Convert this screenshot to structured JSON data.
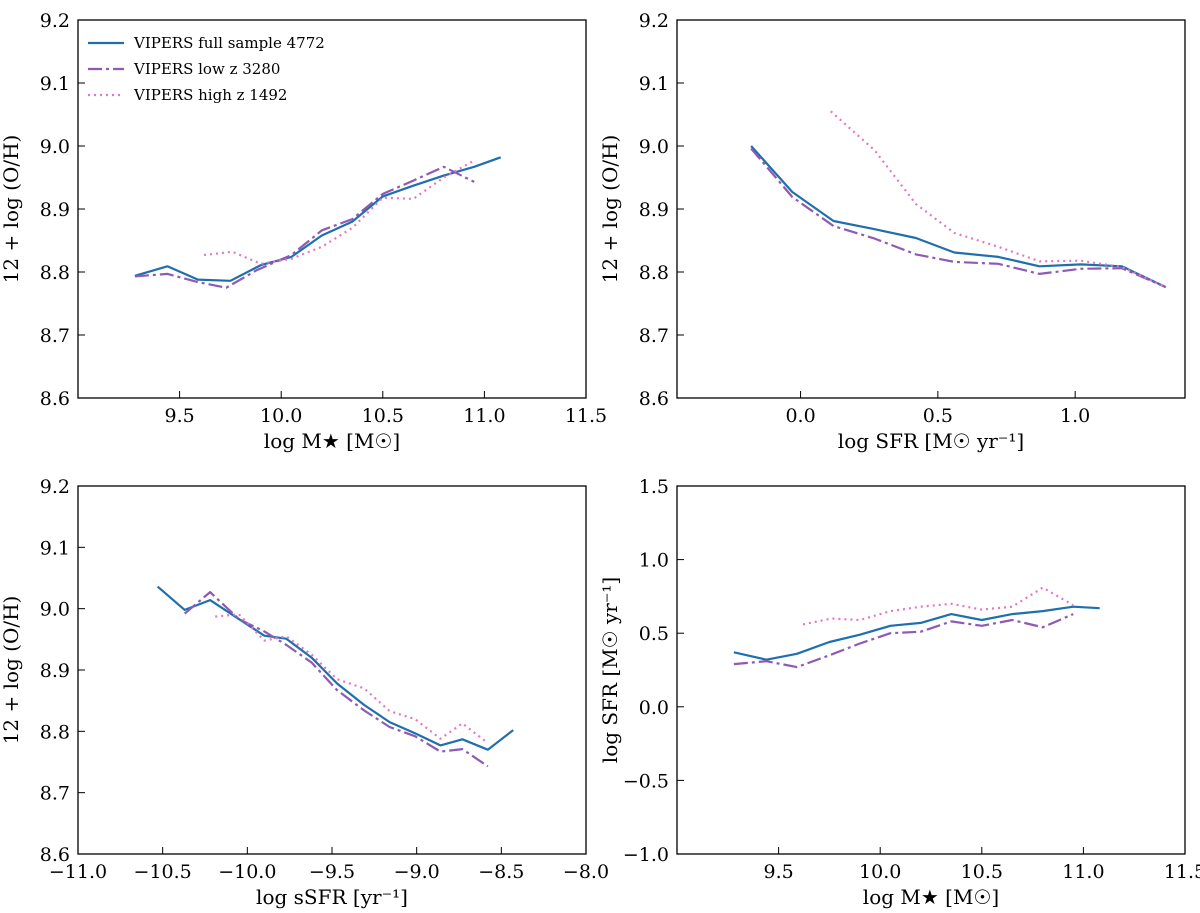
{
  "chart_data": [
    {
      "type": "line",
      "xlabel": "log M★ [M☉]",
      "ylabel": "12 + log (O/H)",
      "xlim": [
        9.0,
        11.5
      ],
      "ylim": [
        8.6,
        9.2
      ],
      "xticks": [
        9.5,
        10.0,
        10.5,
        11.0,
        11.5
      ],
      "yticks": [
        8.6,
        8.7,
        8.8,
        8.9,
        9.0,
        9.1,
        9.2
      ],
      "xtick_labels": [
        "9.5",
        "10.0",
        "10.5",
        "11.0",
        "11.5"
      ],
      "ytick_labels": [
        "8.6",
        "8.7",
        "8.8",
        "8.9",
        "9.0",
        "9.1",
        "9.2"
      ],
      "legend": {
        "position": "upper-left",
        "entries": [
          "VIPERS full sample 4772",
          "VIPERS low z 3280",
          "VIPERS high z 1492"
        ]
      },
      "series": [
        {
          "name": "VIPERS full sample 4772",
          "x": [
            9.28,
            9.44,
            9.59,
            9.75,
            9.9,
            10.05,
            10.2,
            10.35,
            10.5,
            10.65,
            10.8,
            10.95,
            11.08
          ],
          "y": [
            8.794,
            8.809,
            8.788,
            8.786,
            8.811,
            8.824,
            8.858,
            8.88,
            8.92,
            8.937,
            8.953,
            8.967,
            8.982
          ]
        },
        {
          "name": "VIPERS low z 3280",
          "x": [
            9.28,
            9.44,
            9.59,
            9.73,
            9.88,
            10.05,
            10.2,
            10.35,
            10.5,
            10.65,
            10.8,
            10.95
          ],
          "y": [
            8.793,
            8.797,
            8.784,
            8.775,
            8.803,
            8.827,
            8.866,
            8.884,
            8.924,
            8.945,
            8.967,
            8.943
          ]
        },
        {
          "name": "VIPERS high z 1492",
          "x": [
            9.62,
            9.76,
            9.9,
            10.05,
            10.2,
            10.35,
            10.5,
            10.65,
            10.8,
            10.95
          ],
          "y": [
            8.827,
            8.832,
            8.813,
            8.821,
            8.84,
            8.87,
            8.918,
            8.916,
            8.95,
            8.977
          ]
        }
      ]
    },
    {
      "type": "line",
      "xlabel": "log SFR [M☉ yr⁻¹]",
      "ylabel": "12 + log (O/H)",
      "xlim": [
        -0.45,
        1.4
      ],
      "ylim": [
        8.6,
        9.2
      ],
      "xticks": [
        0.0,
        0.5,
        1.0
      ],
      "yticks": [
        8.6,
        8.7,
        8.8,
        8.9,
        9.0,
        9.1,
        9.2
      ],
      "xtick_labels": [
        "0.0",
        "0.5",
        "1.0"
      ],
      "ytick_labels": [
        "8.6",
        "8.7",
        "8.8",
        "8.9",
        "9.0",
        "9.1",
        "9.2"
      ],
      "series": [
        {
          "name": "VIPERS full sample 4772",
          "x": [
            -0.18,
            -0.03,
            0.12,
            0.27,
            0.42,
            0.56,
            0.72,
            0.87,
            1.02,
            1.17,
            1.33
          ],
          "y": [
            9.0,
            8.927,
            8.881,
            8.868,
            8.854,
            8.831,
            8.824,
            8.809,
            8.812,
            8.809,
            8.776
          ]
        },
        {
          "name": "VIPERS low z 3280",
          "x": [
            -0.18,
            -0.03,
            0.12,
            0.27,
            0.42,
            0.56,
            0.72,
            0.87,
            1.02,
            1.17,
            1.33
          ],
          "y": [
            8.996,
            8.919,
            8.873,
            8.853,
            8.828,
            8.816,
            8.813,
            8.797,
            8.805,
            8.806,
            8.776
          ]
        },
        {
          "name": "VIPERS high z 1492",
          "x": [
            0.11,
            0.27,
            0.42,
            0.56,
            0.72,
            0.87,
            1.02,
            1.17,
            1.33
          ],
          "y": [
            9.055,
            8.993,
            8.908,
            8.862,
            8.84,
            8.817,
            8.818,
            8.808,
            8.776
          ]
        }
      ]
    },
    {
      "type": "line",
      "xlabel": "log sSFR [yr⁻¹]",
      "ylabel": "12 + log (O/H)",
      "xlim": [
        -11.0,
        -8.0
      ],
      "ylim": [
        8.6,
        9.2
      ],
      "xticks": [
        -11.0,
        -10.5,
        -10.0,
        -9.5,
        -9.0,
        -8.5,
        -8.0
      ],
      "yticks": [
        8.6,
        8.7,
        8.8,
        8.9,
        9.0,
        9.1,
        9.2
      ],
      "xtick_labels": [
        "−11.0",
        "−10.5",
        "−10.0",
        "−9.5",
        "−9.0",
        "−8.5",
        "−8.0"
      ],
      "ytick_labels": [
        "8.6",
        "8.7",
        "8.8",
        "8.9",
        "9.0",
        "9.1",
        "9.2"
      ],
      "series": [
        {
          "name": "VIPERS full sample 4772",
          "x": [
            -10.53,
            -10.37,
            -10.22,
            -10.05,
            -9.9,
            -9.77,
            -9.62,
            -9.47,
            -9.31,
            -9.16,
            -9.01,
            -8.86,
            -8.73,
            -8.58,
            -8.43
          ],
          "y": [
            9.036,
            8.998,
            9.014,
            8.983,
            8.956,
            8.951,
            8.92,
            8.878,
            8.843,
            8.815,
            8.797,
            8.777,
            8.787,
            8.77,
            8.802
          ]
        },
        {
          "name": "VIPERS low z 3280",
          "x": [
            -10.37,
            -10.22,
            -10.05,
            -9.9,
            -9.77,
            -9.62,
            -9.47,
            -9.31,
            -9.16,
            -9.01,
            -8.86,
            -8.73,
            -8.58
          ],
          "y": [
            8.992,
            9.027,
            8.983,
            8.963,
            8.941,
            8.912,
            8.867,
            8.834,
            8.807,
            8.792,
            8.767,
            8.771,
            8.743
          ]
        },
        {
          "name": "VIPERS high z 1492",
          "x": [
            -10.19,
            -10.05,
            -9.9,
            -9.77,
            -9.62,
            -9.47,
            -9.31,
            -9.16,
            -9.01,
            -8.86,
            -8.73,
            -8.58
          ],
          "y": [
            8.987,
            8.991,
            8.948,
            8.955,
            8.925,
            8.885,
            8.87,
            8.833,
            8.82,
            8.788,
            8.813,
            8.781
          ]
        }
      ]
    },
    {
      "type": "line",
      "xlabel": "log M★ [M☉]",
      "ylabel": "log SFR [M☉ yr⁻¹]",
      "xlim": [
        9.0,
        11.5
      ],
      "ylim": [
        -1.0,
        1.5
      ],
      "xticks": [
        9.5,
        10.0,
        10.5,
        11.0,
        11.5
      ],
      "yticks": [
        -1.0,
        -0.5,
        0.0,
        0.5,
        1.0,
        1.5
      ],
      "xtick_labels": [
        "9.5",
        "10.0",
        "10.5",
        "11.0",
        "11.5"
      ],
      "ytick_labels": [
        "−1.0",
        "−0.5",
        "0.0",
        "0.5",
        "1.0",
        "1.5"
      ],
      "series": [
        {
          "name": "VIPERS full sample 4772",
          "x": [
            9.28,
            9.44,
            9.59,
            9.75,
            9.9,
            10.05,
            10.2,
            10.35,
            10.5,
            10.65,
            10.8,
            10.95,
            11.08
          ],
          "y": [
            0.37,
            0.32,
            0.36,
            0.44,
            0.49,
            0.55,
            0.57,
            0.63,
            0.59,
            0.63,
            0.65,
            0.68,
            0.67
          ]
        },
        {
          "name": "VIPERS low z 3280",
          "x": [
            9.28,
            9.44,
            9.59,
            9.75,
            9.9,
            10.05,
            10.2,
            10.35,
            10.5,
            10.65,
            10.8,
            10.95
          ],
          "y": [
            0.29,
            0.31,
            0.27,
            0.35,
            0.43,
            0.5,
            0.51,
            0.58,
            0.55,
            0.59,
            0.54,
            0.63
          ]
        },
        {
          "name": "VIPERS high z 1492",
          "x": [
            9.62,
            9.76,
            9.9,
            10.05,
            10.2,
            10.35,
            10.5,
            10.65,
            10.8,
            10.95
          ],
          "y": [
            0.56,
            0.6,
            0.59,
            0.65,
            0.68,
            0.7,
            0.66,
            0.68,
            0.81,
            0.69
          ]
        }
      ]
    }
  ],
  "colors": {
    "full": "#1f6fad",
    "low": "#8e5ab5",
    "high": "#e377c2"
  }
}
